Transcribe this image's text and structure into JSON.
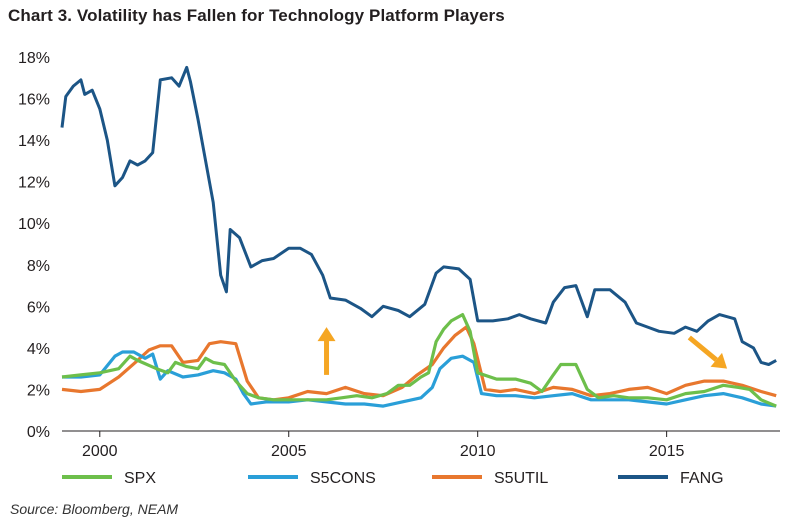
{
  "chart_data": {
    "type": "line",
    "title": "Chart 3. Volatility has Fallen for Technology Platform Players",
    "source": "Source: Bloomberg, NEAM",
    "xlabel": "",
    "ylabel": "",
    "xlim": [
      1999.0,
      2018.0
    ],
    "ylim": [
      0,
      18
    ],
    "yticks": [
      "0%",
      "2%",
      "4%",
      "6%",
      "8%",
      "10%",
      "12%",
      "14%",
      "16%",
      "18%"
    ],
    "xticks": [
      "2000",
      "2005",
      "2010",
      "2015"
    ],
    "grid": false,
    "legend_position": "bottom",
    "series": [
      {
        "name": "SPX",
        "color": "#6dbf4b",
        "points": [
          [
            1999.0,
            2.6
          ],
          [
            1999.5,
            2.7
          ],
          [
            2000.0,
            2.8
          ],
          [
            2000.5,
            3.0
          ],
          [
            2000.8,
            3.6
          ],
          [
            2001.0,
            3.4
          ],
          [
            2001.5,
            3.0
          ],
          [
            2001.8,
            2.8
          ],
          [
            2002.0,
            3.3
          ],
          [
            2002.3,
            3.1
          ],
          [
            2002.6,
            3.0
          ],
          [
            2002.8,
            3.5
          ],
          [
            2003.0,
            3.3
          ],
          [
            2003.3,
            3.2
          ],
          [
            2003.6,
            2.4
          ],
          [
            2003.9,
            1.8
          ],
          [
            2004.2,
            1.6
          ],
          [
            2004.6,
            1.5
          ],
          [
            2005.0,
            1.5
          ],
          [
            2005.5,
            1.5
          ],
          [
            2006.0,
            1.5
          ],
          [
            2006.4,
            1.6
          ],
          [
            2006.8,
            1.7
          ],
          [
            2007.2,
            1.6
          ],
          [
            2007.6,
            1.8
          ],
          [
            2007.9,
            2.2
          ],
          [
            2008.2,
            2.2
          ],
          [
            2008.5,
            2.6
          ],
          [
            2008.7,
            2.8
          ],
          [
            2008.9,
            4.3
          ],
          [
            2009.1,
            4.9
          ],
          [
            2009.3,
            5.3
          ],
          [
            2009.6,
            5.6
          ],
          [
            2009.8,
            4.8
          ],
          [
            2010.0,
            2.8
          ],
          [
            2010.5,
            2.5
          ],
          [
            2011.0,
            2.5
          ],
          [
            2011.4,
            2.3
          ],
          [
            2011.7,
            1.9
          ],
          [
            2012.0,
            2.7
          ],
          [
            2012.2,
            3.2
          ],
          [
            2012.6,
            3.2
          ],
          [
            2012.9,
            2.0
          ],
          [
            2013.2,
            1.6
          ],
          [
            2013.6,
            1.7
          ],
          [
            2014.0,
            1.6
          ],
          [
            2014.5,
            1.6
          ],
          [
            2015.0,
            1.5
          ],
          [
            2015.5,
            1.8
          ],
          [
            2016.0,
            1.9
          ],
          [
            2016.5,
            2.2
          ],
          [
            2016.9,
            2.1
          ],
          [
            2017.2,
            2.0
          ],
          [
            2017.5,
            1.5
          ],
          [
            2017.9,
            1.2
          ]
        ]
      },
      {
        "name": "S5CONS",
        "color": "#2a9fd8",
        "points": [
          [
            1999.0,
            2.6
          ],
          [
            1999.5,
            2.6
          ],
          [
            2000.0,
            2.7
          ],
          [
            2000.4,
            3.6
          ],
          [
            2000.6,
            3.8
          ],
          [
            2000.9,
            3.8
          ],
          [
            2001.2,
            3.5
          ],
          [
            2001.4,
            3.7
          ],
          [
            2001.6,
            2.5
          ],
          [
            2001.8,
            2.9
          ],
          [
            2002.2,
            2.6
          ],
          [
            2002.6,
            2.7
          ],
          [
            2003.0,
            2.9
          ],
          [
            2003.3,
            2.8
          ],
          [
            2003.6,
            2.5
          ],
          [
            2003.8,
            1.8
          ],
          [
            2004.0,
            1.3
          ],
          [
            2004.4,
            1.4
          ],
          [
            2005.0,
            1.4
          ],
          [
            2005.5,
            1.5
          ],
          [
            2006.0,
            1.4
          ],
          [
            2006.5,
            1.3
          ],
          [
            2007.0,
            1.3
          ],
          [
            2007.5,
            1.2
          ],
          [
            2008.0,
            1.4
          ],
          [
            2008.5,
            1.6
          ],
          [
            2008.8,
            2.1
          ],
          [
            2009.0,
            3.0
          ],
          [
            2009.3,
            3.5
          ],
          [
            2009.6,
            3.6
          ],
          [
            2009.9,
            3.3
          ],
          [
            2010.1,
            1.8
          ],
          [
            2010.5,
            1.7
          ],
          [
            2011.0,
            1.7
          ],
          [
            2011.5,
            1.6
          ],
          [
            2012.0,
            1.7
          ],
          [
            2012.5,
            1.8
          ],
          [
            2013.0,
            1.5
          ],
          [
            2013.5,
            1.5
          ],
          [
            2014.0,
            1.5
          ],
          [
            2014.5,
            1.4
          ],
          [
            2015.0,
            1.3
          ],
          [
            2015.5,
            1.5
          ],
          [
            2016.0,
            1.7
          ],
          [
            2016.5,
            1.8
          ],
          [
            2017.0,
            1.6
          ],
          [
            2017.5,
            1.3
          ],
          [
            2017.9,
            1.2
          ]
        ]
      },
      {
        "name": "S5UTIL",
        "color": "#e8772e",
        "points": [
          [
            1999.0,
            2.0
          ],
          [
            1999.5,
            1.9
          ],
          [
            2000.0,
            2.0
          ],
          [
            2000.5,
            2.6
          ],
          [
            2001.0,
            3.4
          ],
          [
            2001.3,
            3.9
          ],
          [
            2001.6,
            4.1
          ],
          [
            2001.9,
            4.1
          ],
          [
            2002.2,
            3.3
          ],
          [
            2002.6,
            3.4
          ],
          [
            2002.9,
            4.2
          ],
          [
            2003.2,
            4.3
          ],
          [
            2003.6,
            4.2
          ],
          [
            2003.9,
            2.4
          ],
          [
            2004.2,
            1.6
          ],
          [
            2004.6,
            1.5
          ],
          [
            2005.0,
            1.6
          ],
          [
            2005.5,
            1.9
          ],
          [
            2006.0,
            1.8
          ],
          [
            2006.5,
            2.1
          ],
          [
            2007.0,
            1.8
          ],
          [
            2007.5,
            1.7
          ],
          [
            2008.0,
            2.1
          ],
          [
            2008.4,
            2.7
          ],
          [
            2008.8,
            3.2
          ],
          [
            2009.1,
            4.0
          ],
          [
            2009.4,
            4.6
          ],
          [
            2009.7,
            5.0
          ],
          [
            2009.9,
            4.2
          ],
          [
            2010.2,
            2.0
          ],
          [
            2010.6,
            1.9
          ],
          [
            2011.0,
            2.0
          ],
          [
            2011.5,
            1.8
          ],
          [
            2012.0,
            2.1
          ],
          [
            2012.5,
            2.0
          ],
          [
            2013.0,
            1.7
          ],
          [
            2013.5,
            1.8
          ],
          [
            2014.0,
            2.0
          ],
          [
            2014.5,
            2.1
          ],
          [
            2015.0,
            1.8
          ],
          [
            2015.5,
            2.2
          ],
          [
            2016.0,
            2.4
          ],
          [
            2016.5,
            2.4
          ],
          [
            2017.0,
            2.2
          ],
          [
            2017.5,
            1.9
          ],
          [
            2017.9,
            1.7
          ]
        ]
      },
      {
        "name": "FANG",
        "color": "#1c5586",
        "points": [
          [
            1999.0,
            14.6
          ],
          [
            1999.1,
            16.1
          ],
          [
            1999.3,
            16.6
          ],
          [
            1999.5,
            16.9
          ],
          [
            1999.6,
            16.2
          ],
          [
            1999.8,
            16.4
          ],
          [
            2000.0,
            15.5
          ],
          [
            2000.2,
            14.0
          ],
          [
            2000.4,
            11.8
          ],
          [
            2000.6,
            12.2
          ],
          [
            2000.8,
            13.0
          ],
          [
            2001.0,
            12.8
          ],
          [
            2001.2,
            13.0
          ],
          [
            2001.4,
            13.4
          ],
          [
            2001.6,
            16.9
          ],
          [
            2001.9,
            17.0
          ],
          [
            2002.1,
            16.6
          ],
          [
            2002.3,
            17.5
          ],
          [
            2002.4,
            16.8
          ],
          [
            2002.6,
            15.0
          ],
          [
            2002.8,
            13.0
          ],
          [
            2003.0,
            11.0
          ],
          [
            2003.2,
            7.5
          ],
          [
            2003.35,
            6.7
          ],
          [
            2003.45,
            9.7
          ],
          [
            2003.7,
            9.3
          ],
          [
            2004.0,
            7.9
          ],
          [
            2004.3,
            8.2
          ],
          [
            2004.6,
            8.3
          ],
          [
            2005.0,
            8.8
          ],
          [
            2005.3,
            8.8
          ],
          [
            2005.6,
            8.5
          ],
          [
            2005.9,
            7.5
          ],
          [
            2006.1,
            6.4
          ],
          [
            2006.5,
            6.3
          ],
          [
            2006.9,
            5.9
          ],
          [
            2007.2,
            5.5
          ],
          [
            2007.5,
            6.0
          ],
          [
            2007.9,
            5.8
          ],
          [
            2008.2,
            5.5
          ],
          [
            2008.6,
            6.1
          ],
          [
            2008.9,
            7.6
          ],
          [
            2009.1,
            7.9
          ],
          [
            2009.5,
            7.8
          ],
          [
            2009.8,
            7.3
          ],
          [
            2010.0,
            5.3
          ],
          [
            2010.4,
            5.3
          ],
          [
            2010.8,
            5.4
          ],
          [
            2011.1,
            5.6
          ],
          [
            2011.4,
            5.4
          ],
          [
            2011.8,
            5.2
          ],
          [
            2012.0,
            6.2
          ],
          [
            2012.3,
            6.9
          ],
          [
            2012.6,
            7.0
          ],
          [
            2012.9,
            5.5
          ],
          [
            2013.1,
            6.8
          ],
          [
            2013.5,
            6.8
          ],
          [
            2013.9,
            6.2
          ],
          [
            2014.2,
            5.2
          ],
          [
            2014.5,
            5.0
          ],
          [
            2014.8,
            4.8
          ],
          [
            2015.2,
            4.7
          ],
          [
            2015.5,
            5.0
          ],
          [
            2015.8,
            4.8
          ],
          [
            2016.1,
            5.3
          ],
          [
            2016.4,
            5.6
          ],
          [
            2016.8,
            5.4
          ],
          [
            2017.0,
            4.3
          ],
          [
            2017.3,
            4.0
          ],
          [
            2017.5,
            3.3
          ],
          [
            2017.7,
            3.2
          ],
          [
            2017.9,
            3.4
          ]
        ]
      }
    ],
    "annotations": [
      {
        "type": "arrow-up",
        "color": "#f5a623",
        "x": 2006.0,
        "y_from": 2.7,
        "y_to": 5.0
      },
      {
        "type": "arrow-down-right",
        "color": "#f5a623",
        "x_from": 2015.6,
        "y_from": 4.5,
        "x_to": 2016.6,
        "y_to": 3.0
      }
    ]
  }
}
